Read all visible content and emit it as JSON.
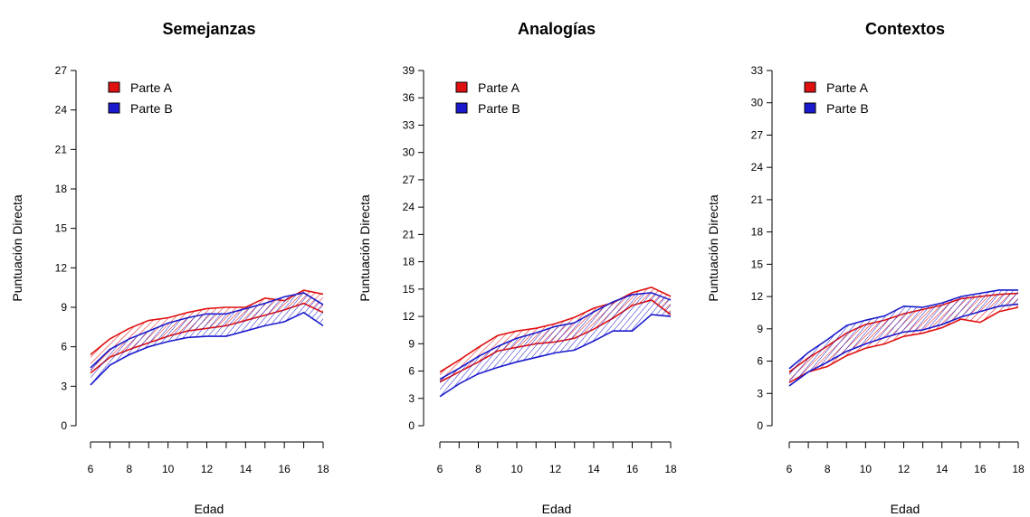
{
  "chart_data": [
    {
      "type": "area",
      "title": "Semejanzas",
      "xlabel": "Edad",
      "ylabel": "Puntuación Directa",
      "xlim": [
        6,
        18
      ],
      "ylim": [
        0,
        27
      ],
      "x_ticks": [
        "6",
        "8",
        "10",
        "12",
        "14",
        "16",
        "18"
      ],
      "y_ticks": [
        "0",
        "3",
        "6",
        "9",
        "12",
        "15",
        "18",
        "21",
        "24",
        "27"
      ],
      "legend": "top-left",
      "x": [
        6,
        7,
        8,
        9,
        10,
        11,
        12,
        13,
        14,
        15,
        16,
        17,
        18
      ],
      "series": [
        {
          "name": "Parte A",
          "color": "#e01010",
          "upper": [
            5.4,
            6.6,
            7.4,
            8.0,
            8.2,
            8.6,
            8.9,
            9.0,
            9.0,
            9.7,
            9.5,
            10.3,
            10.0
          ],
          "lower": [
            4.0,
            5.2,
            5.8,
            6.3,
            6.8,
            7.2,
            7.4,
            7.6,
            8.0,
            8.4,
            8.8,
            9.3,
            8.6
          ]
        },
        {
          "name": "Parte B",
          "color": "#1a1acc",
          "upper": [
            4.4,
            5.8,
            6.6,
            7.2,
            7.8,
            8.2,
            8.5,
            8.5,
            8.9,
            9.3,
            9.8,
            10.1,
            9.2
          ],
          "lower": [
            3.1,
            4.6,
            5.4,
            6.0,
            6.4,
            6.7,
            6.8,
            6.8,
            7.2,
            7.6,
            7.9,
            8.6,
            7.6
          ]
        }
      ]
    },
    {
      "type": "area",
      "title": "Analogías",
      "xlabel": "Edad",
      "ylabel": "Puntuación Directa",
      "xlim": [
        6,
        18
      ],
      "ylim": [
        0,
        39
      ],
      "x_ticks": [
        "6",
        "8",
        "10",
        "12",
        "14",
        "16",
        "18"
      ],
      "y_ticks": [
        "0",
        "3",
        "6",
        "9",
        "12",
        "15",
        "18",
        "21",
        "24",
        "27",
        "30",
        "33",
        "36",
        "39"
      ],
      "legend": "top-left",
      "x": [
        6,
        7,
        8,
        9,
        10,
        11,
        12,
        13,
        14,
        15,
        16,
        17,
        18
      ],
      "series": [
        {
          "name": "Parte A",
          "color": "#e01010",
          "upper": [
            5.9,
            7.2,
            8.6,
            9.9,
            10.4,
            10.7,
            11.2,
            11.9,
            12.9,
            13.5,
            14.6,
            15.2,
            14.2
          ],
          "lower": [
            4.8,
            5.9,
            7.0,
            8.2,
            8.6,
            9.0,
            9.2,
            9.6,
            10.6,
            11.8,
            13.2,
            13.8,
            12.2
          ]
        },
        {
          "name": "Parte B",
          "color": "#1a1acc",
          "upper": [
            5.1,
            6.3,
            7.6,
            8.7,
            9.6,
            10.2,
            10.9,
            11.3,
            12.5,
            13.6,
            14.4,
            14.6,
            13.8
          ],
          "lower": [
            3.2,
            4.6,
            5.7,
            6.4,
            7.0,
            7.5,
            8.0,
            8.3,
            9.3,
            10.4,
            10.4,
            12.2,
            12.0
          ]
        }
      ]
    },
    {
      "type": "area",
      "title": "Contextos",
      "xlabel": "Edad",
      "ylabel": "Puntuación Directa",
      "xlim": [
        6,
        18
      ],
      "ylim": [
        0,
        33
      ],
      "x_ticks": [
        "6",
        "8",
        "10",
        "12",
        "14",
        "16",
        "18"
      ],
      "y_ticks": [
        "0",
        "3",
        "6",
        "9",
        "12",
        "15",
        "18",
        "21",
        "24",
        "27",
        "30",
        "33"
      ],
      "legend": "top-left",
      "x": [
        6,
        7,
        8,
        9,
        10,
        11,
        12,
        13,
        14,
        15,
        16,
        17,
        18
      ],
      "series": [
        {
          "name": "Parte A",
          "color": "#e01010",
          "upper": [
            5.0,
            6.3,
            7.4,
            8.6,
            9.4,
            9.8,
            10.4,
            10.8,
            11.2,
            11.8,
            12.0,
            12.2,
            12.3
          ],
          "lower": [
            4.0,
            5.0,
            5.5,
            6.5,
            7.2,
            7.6,
            8.3,
            8.6,
            9.1,
            9.9,
            9.6,
            10.6,
            11.0
          ]
        },
        {
          "name": "Parte B",
          "color": "#1a1acc",
          "upper": [
            5.3,
            6.8,
            8.0,
            9.3,
            9.8,
            10.2,
            11.1,
            11.0,
            11.4,
            12.0,
            12.3,
            12.6,
            12.6
          ],
          "lower": [
            3.7,
            5.0,
            5.9,
            6.9,
            7.6,
            8.2,
            8.7,
            8.9,
            9.4,
            10.1,
            10.6,
            11.1,
            11.3
          ]
        }
      ]
    }
  ]
}
